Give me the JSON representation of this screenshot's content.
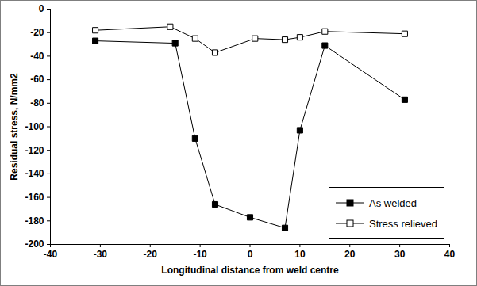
{
  "chart_data": {
    "type": "line",
    "xlabel": "Longitudinal distance from weld centre",
    "ylabel": "Residual stress, N/mm2",
    "xlim": [
      -40,
      40
    ],
    "xticks": [
      -40,
      -30,
      -20,
      -10,
      0,
      10,
      20,
      30,
      40
    ],
    "ylim": [
      -200,
      0
    ],
    "yticks": [
      -200,
      -180,
      -160,
      -140,
      -120,
      -100,
      -80,
      -60,
      -40,
      -20,
      0
    ],
    "grid": false,
    "legend": "bottom-right",
    "series": [
      {
        "name": "As welded",
        "color": "#000000",
        "marker": "square",
        "x": [
          -31,
          -15,
          -11,
          -7,
          0,
          7,
          10,
          15,
          31
        ],
        "values": [
          -27,
          -29,
          -110,
          -166,
          -177,
          -186,
          -103,
          -31,
          -77
        ]
      },
      {
        "name": "Stress relieved",
        "color": "#000000",
        "marker": "open-square",
        "x": [
          -31,
          -16,
          -11,
          -7,
          1,
          7,
          10,
          15,
          31
        ],
        "values": [
          -18,
          -15,
          -25,
          -37,
          -25,
          -26,
          -24,
          -19,
          -21
        ]
      }
    ]
  }
}
